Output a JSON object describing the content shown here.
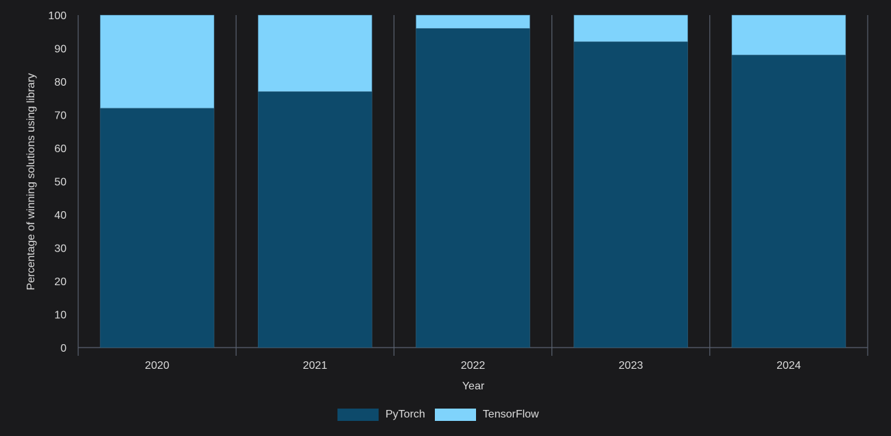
{
  "chart_data": {
    "type": "bar",
    "stacked": true,
    "title": "",
    "xlabel": "Year",
    "ylabel": "Percentage of winning solutions using library",
    "categories": [
      "2020",
      "2021",
      "2022",
      "2023",
      "2024"
    ],
    "series": [
      {
        "name": "PyTorch",
        "color": "#0d4a6b",
        "values": [
          72,
          77,
          96,
          92,
          88
        ]
      },
      {
        "name": "TensorFlow",
        "color": "#7fd3fc",
        "values": [
          28,
          23,
          4,
          8,
          12
        ]
      }
    ],
    "ylim": [
      0,
      100
    ],
    "yticks": [
      0,
      10,
      20,
      30,
      40,
      50,
      60,
      70,
      80,
      90,
      100
    ],
    "grid": "vertical category separators",
    "legend_position": "bottom"
  },
  "labels": {
    "xlabel": "Year",
    "ylabel": "Percentage of winning solutions using library",
    "legend": [
      "PyTorch",
      "TensorFlow"
    ]
  }
}
